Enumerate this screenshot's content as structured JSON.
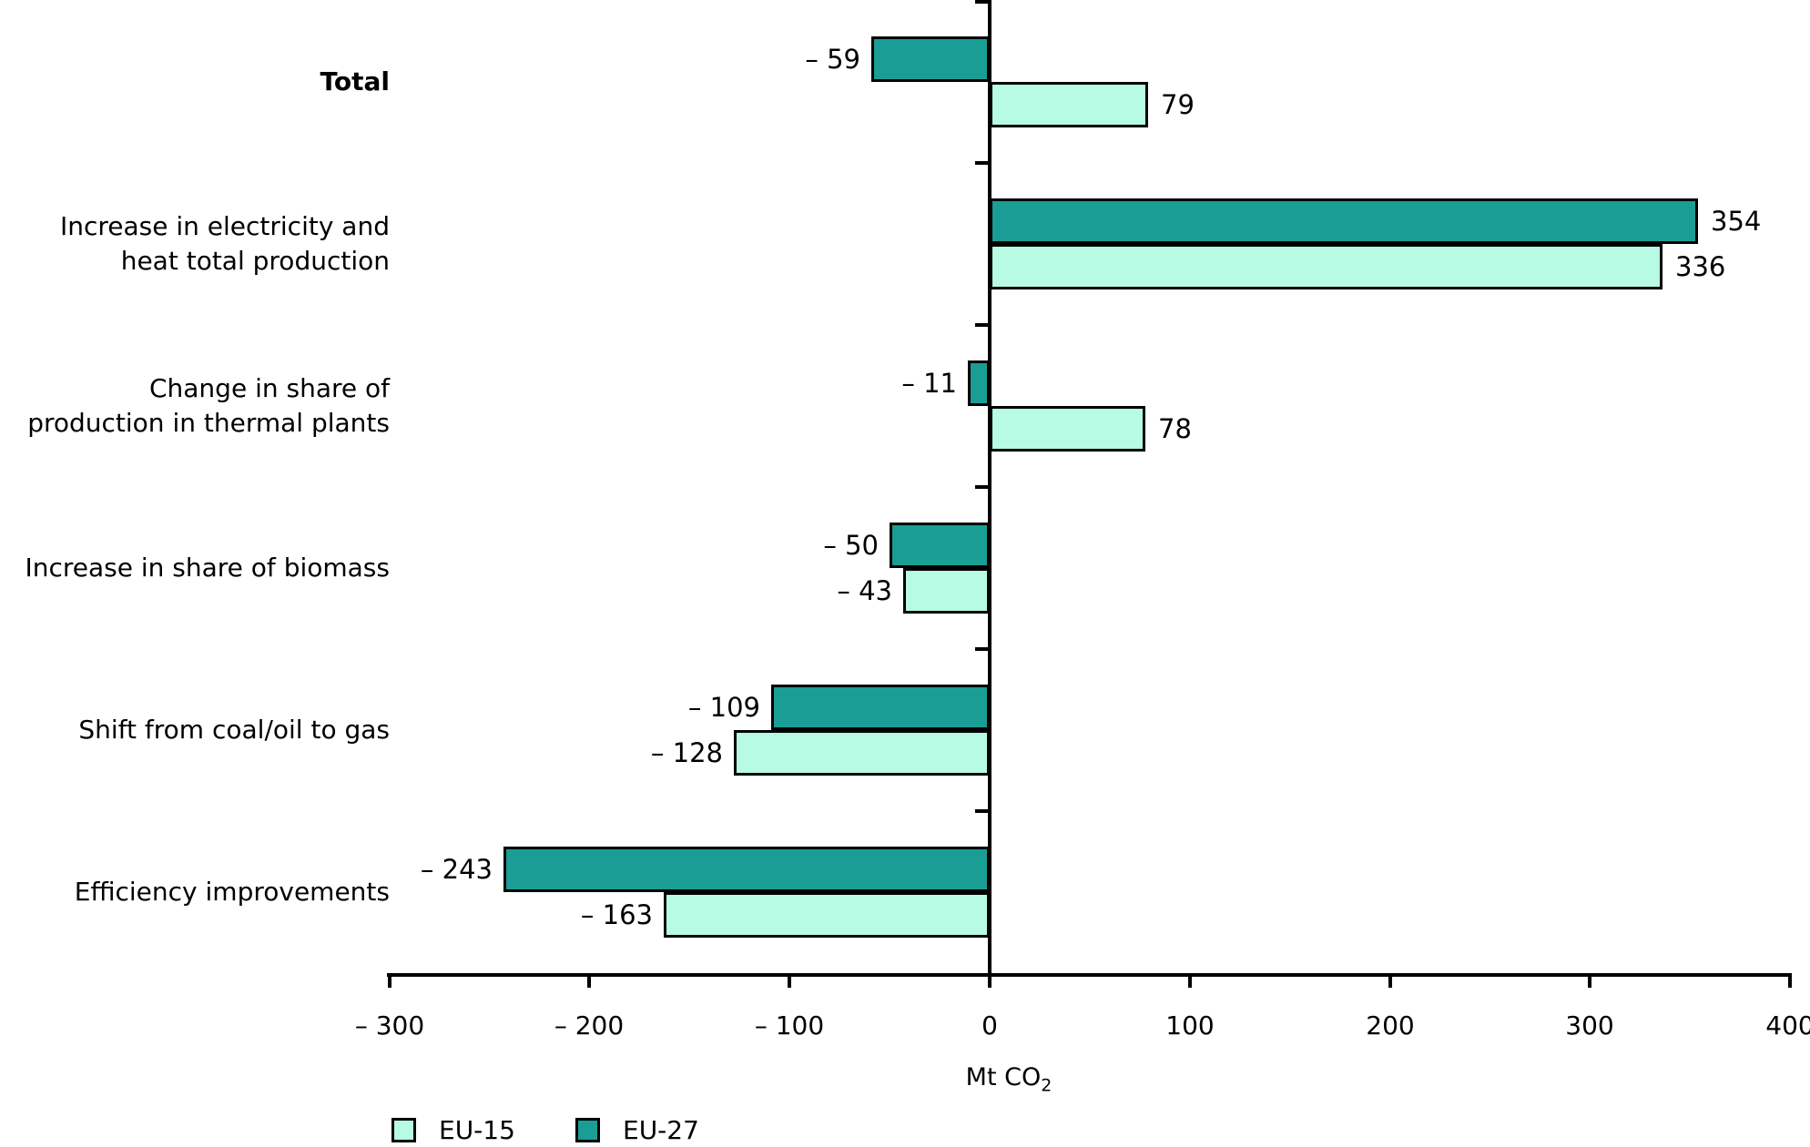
{
  "chart_data": {
    "type": "bar",
    "orientation": "horizontal",
    "xlabel": {
      "text": "Mt CO",
      "subscript": "2"
    },
    "xlim": [
      -300,
      400
    ],
    "grid": false,
    "legend_position": "bottom-left",
    "axis_color": "#000000",
    "categories": [
      {
        "lines": [
          "Total"
        ],
        "bold": true
      },
      {
        "lines": [
          "Increase in electricity and",
          "heat total production"
        ],
        "bold": false
      },
      {
        "lines": [
          "Change in share of",
          "production in thermal plants"
        ],
        "bold": false
      },
      {
        "lines": [
          "Increase in share of biomass"
        ],
        "bold": false
      },
      {
        "lines": [
          "Shift from coal/oil to gas"
        ],
        "bold": false
      },
      {
        "lines": [
          "Efficiency improvements"
        ],
        "bold": false
      }
    ],
    "series": [
      {
        "name": "EU-27",
        "color": "#1A9D95",
        "values": [
          -59,
          354,
          -11,
          -50,
          -109,
          -243
        ],
        "value_labels": [
          "– 59",
          "354",
          "– 11",
          "– 50",
          "– 109",
          "– 243"
        ]
      },
      {
        "name": "EU-15",
        "color": "#B7FBE5",
        "values": [
          79,
          336,
          78,
          -43,
          -128,
          -163
        ],
        "value_labels": [
          "79",
          "336",
          "78",
          "– 43",
          "– 128",
          "– 163"
        ]
      }
    ],
    "xticks": [
      {
        "value": -300,
        "label": "– 300"
      },
      {
        "value": -200,
        "label": "– 200"
      },
      {
        "value": -100,
        "label": "– 100"
      },
      {
        "value": 0,
        "label": "0"
      },
      {
        "value": 100,
        "label": "100"
      },
      {
        "value": 200,
        "label": "200"
      },
      {
        "value": 300,
        "label": "300"
      },
      {
        "value": 400,
        "label": "400"
      }
    ],
    "legend": [
      {
        "label": "EU-15",
        "color": "#B7FBE5"
      },
      {
        "label": "EU-27",
        "color": "#1A9D95"
      }
    ]
  }
}
